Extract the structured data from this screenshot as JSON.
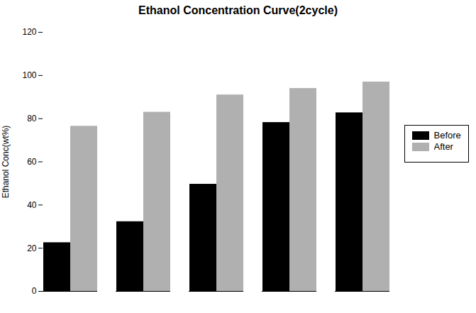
{
  "chart_data": {
    "type": "bar",
    "title": "Ethanol Concentration Curve(2cycle)",
    "ylabel": "Ethanol Conc(wt%)",
    "categories": [
      null,
      null,
      null,
      null,
      null
    ],
    "series": [
      {
        "name": "Before",
        "color": "#000000",
        "values": [
          22.56,
          32.29,
          49.63,
          78.22,
          82.72
        ]
      },
      {
        "name": "After",
        "color": "#b0b0b0",
        "values": [
          76.5,
          83.0,
          91.0,
          94.0,
          97.0
        ]
      }
    ],
    "ylim": [
      0,
      120
    ],
    "yticks": [
      0,
      20,
      40,
      60,
      80,
      100,
      120
    ],
    "grid": false,
    "legend": "right",
    "tick_labels": "y"
  }
}
